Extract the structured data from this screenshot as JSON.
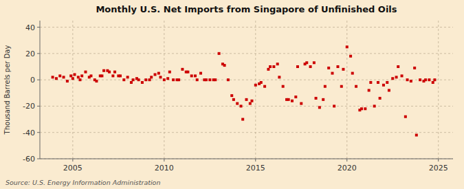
{
  "chart_data": {
    "type": "scatter",
    "title": "Monthly U.S. Net Imports from Singapore of Unfinished Oils",
    "y_label": "Thousand Barrels per Day",
    "source": "Source: U.S. Energy Information Administration",
    "color": "#cc0000",
    "marker": "square",
    "grid": true,
    "xlim": [
      2003.2,
      2025.8
    ],
    "xticks": [
      2005,
      2010,
      2015,
      2020,
      2025
    ],
    "ylim": [
      -60,
      45
    ],
    "yticks": [
      -60,
      -40,
      -20,
      0,
      20,
      40
    ],
    "x": [
      2003.9,
      2004.1,
      2004.3,
      2004.5,
      2004.7,
      2004.9,
      2005.0,
      2005.1,
      2005.3,
      2005.4,
      2005.5,
      2005.7,
      2005.9,
      2006.0,
      2006.2,
      2006.3,
      2006.5,
      2006.6,
      2006.7,
      2006.9,
      2007.0,
      2007.2,
      2007.3,
      2007.5,
      2007.6,
      2007.8,
      2008.0,
      2008.2,
      2008.3,
      2008.5,
      2008.6,
      2008.8,
      2009.0,
      2009.2,
      2009.3,
      2009.5,
      2009.7,
      2009.8,
      2010.0,
      2010.2,
      2010.3,
      2010.5,
      2010.7,
      2010.8,
      2011.0,
      2011.2,
      2011.3,
      2011.5,
      2011.7,
      2011.8,
      2012.0,
      2012.2,
      2012.3,
      2012.5,
      2012.7,
      2012.8,
      2013.0,
      2013.2,
      2013.3,
      2013.5,
      2013.7,
      2013.8,
      2014.0,
      2014.2,
      2014.3,
      2014.5,
      2014.7,
      2014.8,
      2015.0,
      2015.2,
      2015.3,
      2015.5,
      2015.7,
      2015.8,
      2016.0,
      2016.2,
      2016.3,
      2016.5,
      2016.7,
      2016.8,
      2017.0,
      2017.2,
      2017.3,
      2017.5,
      2017.7,
      2017.8,
      2018.0,
      2018.2,
      2018.3,
      2018.5,
      2018.7,
      2018.8,
      2019.0,
      2019.2,
      2019.3,
      2019.5,
      2019.7,
      2019.8,
      2020.0,
      2020.2,
      2020.3,
      2020.5,
      2020.7,
      2020.8,
      2021.0,
      2021.2,
      2021.3,
      2021.5,
      2021.7,
      2021.8,
      2022.0,
      2022.2,
      2022.3,
      2022.5,
      2022.7,
      2022.8,
      2023.0,
      2023.2,
      2023.3,
      2023.5,
      2023.7,
      2023.8,
      2024.0,
      2024.2,
      2024.3,
      2024.5,
      2024.7,
      2024.8
    ],
    "values": [
      2,
      1,
      3,
      2,
      -1,
      3,
      1,
      4,
      2,
      0,
      3,
      6,
      2,
      3,
      0,
      -1,
      3,
      3,
      7,
      7,
      6,
      3,
      6,
      3,
      3,
      0,
      2,
      -2,
      0,
      1,
      0,
      -2,
      0,
      0,
      2,
      4,
      5,
      2,
      0,
      1,
      6,
      0,
      0,
      0,
      8,
      6,
      6,
      3,
      3,
      0,
      5,
      0,
      0,
      0,
      0,
      0,
      20,
      12,
      11,
      0,
      -12,
      -15,
      -18,
      -20,
      -30,
      -15,
      -18,
      -16,
      -4,
      -3,
      -2,
      -5,
      8,
      10,
      10,
      12,
      2,
      -5,
      -15,
      -15,
      -16,
      -13,
      10,
      -18,
      12,
      13,
      10,
      13,
      -14,
      -21,
      -15,
      -5,
      9,
      5,
      -20,
      10,
      -5,
      8,
      25,
      18,
      5,
      -5,
      -23,
      -22,
      -22,
      -8,
      -2,
      -20,
      -2,
      -14,
      -4,
      -2,
      -8,
      1,
      2,
      10,
      3,
      -28,
      0,
      -1,
      9,
      -42,
      0,
      -1,
      0,
      0,
      -2,
      0
    ]
  }
}
